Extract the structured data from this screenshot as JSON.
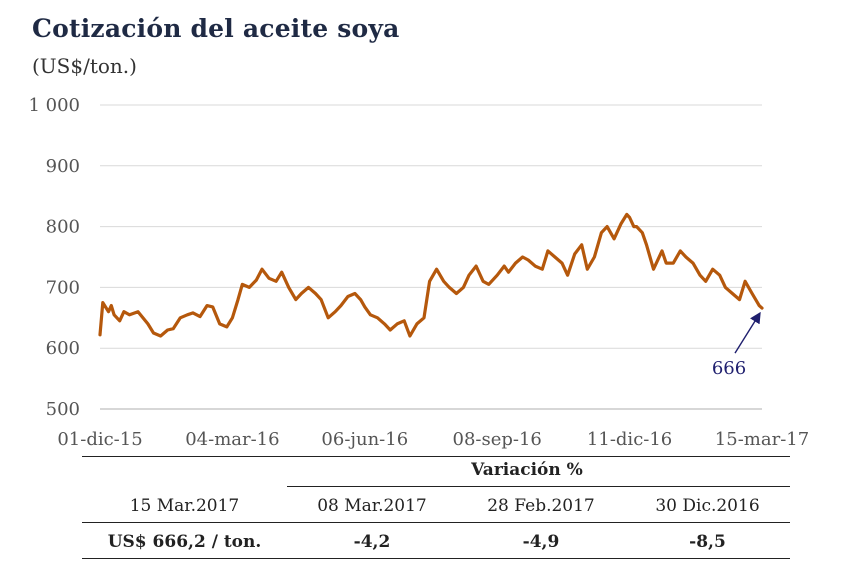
{
  "header": {
    "title": "Cotización del aceite soya",
    "subtitle": "(US$/ton.)"
  },
  "chart_data": {
    "type": "line",
    "title": "Cotización del aceite soya",
    "subtitle": "(US$/ton.)",
    "ylim": [
      500,
      1000
    ],
    "y_ticks": [
      "500",
      "600",
      "700",
      "800",
      "900",
      "1 000"
    ],
    "y_tick_values": [
      500,
      600,
      700,
      800,
      900,
      1000
    ],
    "x_ticks": [
      "01-dic-15",
      "04-mar-16",
      "06-jun-16",
      "08-sep-16",
      "11-dic-16",
      "15-mar-17"
    ],
    "x_tick_dates": [
      "2015-12-01",
      "2016-03-04",
      "2016-06-06",
      "2016-09-08",
      "2016-12-11",
      "2017-03-15"
    ],
    "grid": true,
    "series": [
      {
        "color": "#b5580c",
        "x": [
          "2015-12-01",
          "2015-12-03",
          "2015-12-07",
          "2015-12-09",
          "2015-12-11",
          "2015-12-15",
          "2015-12-18",
          "2015-12-22",
          "2015-12-28",
          "2016-01-04",
          "2016-01-08",
          "2016-01-13",
          "2016-01-18",
          "2016-01-22",
          "2016-01-27",
          "2016-02-01",
          "2016-02-05",
          "2016-02-10",
          "2016-02-15",
          "2016-02-19",
          "2016-02-24",
          "2016-02-29",
          "2016-03-04",
          "2016-03-08",
          "2016-03-11",
          "2016-03-16",
          "2016-03-21",
          "2016-03-25",
          "2016-03-30",
          "2016-04-04",
          "2016-04-08",
          "2016-04-13",
          "2016-04-18",
          "2016-04-22",
          "2016-04-27",
          "2016-05-02",
          "2016-05-06",
          "2016-05-11",
          "2016-05-16",
          "2016-05-20",
          "2016-05-25",
          "2016-05-30",
          "2016-06-03",
          "2016-06-06",
          "2016-06-10",
          "2016-06-15",
          "2016-06-20",
          "2016-06-24",
          "2016-06-29",
          "2016-07-04",
          "2016-07-08",
          "2016-07-13",
          "2016-07-18",
          "2016-07-22",
          "2016-07-27",
          "2016-08-01",
          "2016-08-05",
          "2016-08-10",
          "2016-08-15",
          "2016-08-19",
          "2016-08-24",
          "2016-08-29",
          "2016-09-02",
          "2016-09-08",
          "2016-09-13",
          "2016-09-16",
          "2016-09-21",
          "2016-09-26",
          "2016-09-30",
          "2016-10-05",
          "2016-10-10",
          "2016-10-14",
          "2016-10-19",
          "2016-10-24",
          "2016-10-28",
          "2016-11-02",
          "2016-11-07",
          "2016-11-11",
          "2016-11-16",
          "2016-11-21",
          "2016-11-25",
          "2016-11-30",
          "2016-12-05",
          "2016-12-09",
          "2016-12-11",
          "2016-12-14",
          "2016-12-16",
          "2016-12-20",
          "2016-12-23",
          "2016-12-28",
          "2017-01-03",
          "2017-01-06",
          "2017-01-11",
          "2017-01-16",
          "2017-01-20",
          "2017-01-25",
          "2017-01-30",
          "2017-02-03",
          "2017-02-08",
          "2017-02-13",
          "2017-02-17",
          "2017-02-22",
          "2017-02-27",
          "2017-03-03",
          "2017-03-08",
          "2017-03-13",
          "2017-03-15"
        ],
        "y": [
          622,
          675,
          660,
          670,
          655,
          645,
          660,
          655,
          660,
          640,
          625,
          620,
          630,
          632,
          650,
          655,
          658,
          652,
          670,
          668,
          640,
          635,
          650,
          680,
          705,
          700,
          712,
          730,
          715,
          710,
          725,
          700,
          680,
          690,
          700,
          690,
          680,
          650,
          660,
          670,
          685,
          690,
          680,
          668,
          655,
          650,
          640,
          630,
          640,
          645,
          620,
          640,
          650,
          710,
          730,
          710,
          700,
          690,
          700,
          720,
          735,
          710,
          705,
          720,
          735,
          725,
          740,
          750,
          745,
          735,
          730,
          760,
          750,
          740,
          720,
          755,
          770,
          730,
          750,
          790,
          800,
          780,
          805,
          820,
          815,
          800,
          800,
          790,
          770,
          730,
          760,
          740,
          740,
          760,
          750,
          740,
          720,
          710,
          730,
          720,
          700,
          690,
          680,
          710,
          690,
          670,
          666
        ]
      }
    ],
    "annotations": [
      {
        "text": "666",
        "x": "2017-03-15",
        "y": 666
      }
    ]
  },
  "table": {
    "header_group": "Variación %",
    "columns": [
      "15 Mar.2017",
      "08 Mar.2017",
      "28 Feb.2017",
      "30 Dic.2016"
    ],
    "values": [
      "US$ 666,2 / ton.",
      "-4,2",
      "-4,9",
      "-8,5"
    ]
  }
}
